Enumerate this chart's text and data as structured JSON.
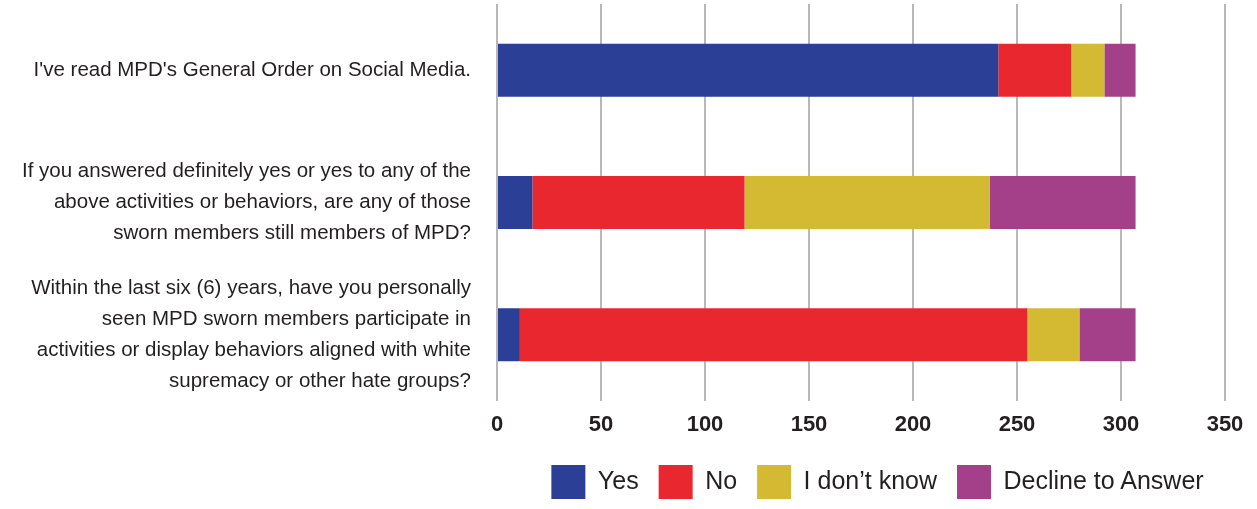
{
  "chart_data": {
    "type": "bar",
    "orientation": "horizontal",
    "stacked": true,
    "categories": [
      "I've read MPD's General Order on Social Media.",
      "If you answered definitely yes or yes to any of the above activities or behaviors, are any of those sworn members still members of MPD?",
      "Within the last six (6) years, have you personally seen MPD sworn members participate in activities or display behaviors aligned with white supremacy or other hate groups?"
    ],
    "series": [
      {
        "name": "Yes",
        "color": "#2b3f96",
        "values": [
          241,
          17,
          11
        ]
      },
      {
        "name": "No",
        "color": "#e8282e",
        "values": [
          35,
          102,
          244
        ]
      },
      {
        "name": "I don’t know",
        "color": "#d4b932",
        "values": [
          16,
          118,
          25
        ]
      },
      {
        "name": "Decline to Answer",
        "color": "#a34089",
        "values": [
          15,
          70,
          27
        ]
      }
    ],
    "xlim": [
      0,
      350
    ],
    "xticks": [
      0,
      50,
      100,
      150,
      200,
      250,
      300,
      350
    ],
    "grid": "x",
    "legend": "bottom"
  }
}
